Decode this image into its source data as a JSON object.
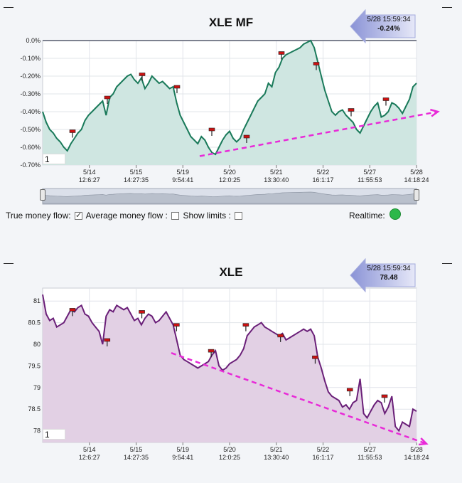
{
  "chart_data": [
    {
      "type": "area",
      "title": "XLE MF",
      "xlabel": "",
      "ylabel": "",
      "ylim": [
        -0.7,
        0.0
      ],
      "ytick_labels": [
        "0.0%",
        "-0.10%",
        "-0.20%",
        "-0.30%",
        "-0.40%",
        "-0.50%",
        "-0.60%",
        "-0.70%"
      ],
      "ytick_values": [
        0.0,
        -0.1,
        -0.2,
        -0.3,
        -0.4,
        -0.5,
        -0.6,
        -0.7
      ],
      "xtick_labels": [
        {
          "date": "5/14",
          "time": "12:6:27"
        },
        {
          "date": "5/15",
          "time": "14:27:35"
        },
        {
          "date": "5/19",
          "time": "9:54:41"
        },
        {
          "date": "5/20",
          "time": "12:0:25"
        },
        {
          "date": "5/21",
          "time": "13:30:40"
        },
        {
          "date": "5/22",
          "time": "16:1:17"
        },
        {
          "date": "5/27",
          "time": "11:55:53"
        },
        {
          "date": "5/28",
          "time": "14:18:24"
        }
      ],
      "series": [
        {
          "values": [
            -0.4,
            -0.46,
            -0.5,
            -0.52,
            -0.55,
            -0.57,
            -0.6,
            -0.62,
            -0.58,
            -0.55,
            -0.52,
            -0.5,
            -0.45,
            -0.42,
            -0.4,
            -0.38,
            -0.36,
            -0.34,
            -0.42,
            -0.32,
            -0.3,
            -0.26,
            -0.24,
            -0.22,
            -0.2,
            -0.19,
            -0.22,
            -0.24,
            -0.21,
            -0.27,
            -0.24,
            -0.2,
            -0.22,
            -0.24,
            -0.23,
            -0.25,
            -0.27,
            -0.26,
            -0.35,
            -0.42,
            -0.46,
            -0.5,
            -0.54,
            -0.56,
            -0.58,
            -0.54,
            -0.56,
            -0.6,
            -0.63,
            -0.64,
            -0.6,
            -0.56,
            -0.53,
            -0.51,
            -0.55,
            -0.57,
            -0.55,
            -0.5,
            -0.46,
            -0.42,
            -0.38,
            -0.34,
            -0.32,
            -0.3,
            -0.24,
            -0.26,
            -0.18,
            -0.15,
            -0.1,
            -0.08,
            -0.07,
            -0.06,
            -0.05,
            -0.04,
            -0.02,
            -0.01,
            0.0,
            -0.04,
            -0.12,
            -0.2,
            -0.28,
            -0.34,
            -0.4,
            -0.42,
            -0.4,
            -0.39,
            -0.42,
            -0.44,
            -0.46,
            -0.5,
            -0.52,
            -0.48,
            -0.44,
            -0.4,
            -0.37,
            -0.35,
            -0.43,
            -0.42,
            -0.4,
            -0.35,
            -0.36,
            -0.38,
            -0.41,
            -0.37,
            -0.33,
            -0.26,
            -0.24
          ],
          "markers": [
            -0.51,
            -0.32,
            -0.19,
            -0.26,
            -0.5,
            -0.54,
            -0.07,
            -0.13,
            -0.39,
            -0.33
          ],
          "trend": [
            -0.65,
            -0.4
          ]
        }
      ],
      "label_box": "1",
      "grid": true
    },
    {
      "type": "area",
      "title": "XLE",
      "xlabel": "",
      "ylabel": "",
      "ylim": [
        77.73,
        81.3
      ],
      "ytick_labels": [
        "81",
        "80.5",
        "80",
        "79.5",
        "79",
        "78.5",
        "78"
      ],
      "ytick_values": [
        81,
        80.5,
        80,
        79.5,
        79,
        78.5,
        78
      ],
      "xtick_labels": [
        {
          "date": "5/14",
          "time": "12:6:27"
        },
        {
          "date": "5/15",
          "time": "14:27:35"
        },
        {
          "date": "5/19",
          "time": "9:54:41"
        },
        {
          "date": "5/20",
          "time": "12:0:25"
        },
        {
          "date": "5/21",
          "time": "13:30:40"
        },
        {
          "date": "5/22",
          "time": "16:1:17"
        },
        {
          "date": "5/27",
          "time": "11:55:53"
        },
        {
          "date": "5/28",
          "time": "14:18:24"
        }
      ],
      "series": [
        {
          "values": [
            81.15,
            80.7,
            80.55,
            80.6,
            80.4,
            80.45,
            80.5,
            80.65,
            80.8,
            80.75,
            80.85,
            80.9,
            80.7,
            80.65,
            80.5,
            80.4,
            80.3,
            80.0,
            80.65,
            80.8,
            80.75,
            80.9,
            80.85,
            80.8,
            80.85,
            80.7,
            80.55,
            80.6,
            80.45,
            80.6,
            80.7,
            80.65,
            80.5,
            80.55,
            80.65,
            80.75,
            80.6,
            80.45,
            80.1,
            79.75,
            79.65,
            79.6,
            79.55,
            79.5,
            79.45,
            79.5,
            79.55,
            79.6,
            79.75,
            79.85,
            79.5,
            79.4,
            79.45,
            79.55,
            79.6,
            79.65,
            79.75,
            79.9,
            80.2,
            80.3,
            80.4,
            80.45,
            80.5,
            80.4,
            80.35,
            80.3,
            80.25,
            80.2,
            80.25,
            80.1,
            80.15,
            80.2,
            80.25,
            80.3,
            80.35,
            80.3,
            80.35,
            80.2,
            79.7,
            79.45,
            79.15,
            78.9,
            78.8,
            78.75,
            78.7,
            78.55,
            78.6,
            78.5,
            78.65,
            78.7,
            79.2,
            78.4,
            78.3,
            78.45,
            78.6,
            78.7,
            78.65,
            78.4,
            78.55,
            78.8,
            78.1,
            78.0,
            78.2,
            78.15,
            78.1,
            78.5,
            78.45
          ],
          "markers": [
            80.8,
            80.1,
            80.75,
            80.45,
            79.85,
            80.45,
            80.2,
            79.7,
            78.95,
            78.8
          ],
          "trend": [
            79.8,
            77.7
          ]
        }
      ],
      "label_box": "1",
      "grid": true
    }
  ],
  "callouts": [
    {
      "timestamp": "5/28 15:59:34",
      "value": "-0.24%"
    },
    {
      "timestamp": "5/28 15:59:34",
      "value": "78.48"
    }
  ],
  "controls": {
    "true_money_flow_label": "True money flow:",
    "true_money_flow_checked": true,
    "average_money_flow_label": "Average money flow :",
    "average_money_flow_checked": false,
    "show_limits_label": "Show limits :",
    "show_limits_checked": false,
    "realtime_label": "Realtime:",
    "realtime_color": "#2db84a"
  },
  "colors": {
    "mf_line": "#1a7a5a",
    "mf_fill": "#cfe6e1",
    "price_line": "#6a1f78",
    "price_fill": "#e2d0e4",
    "trend": "#e82ad8",
    "marker": "#cc1111"
  }
}
